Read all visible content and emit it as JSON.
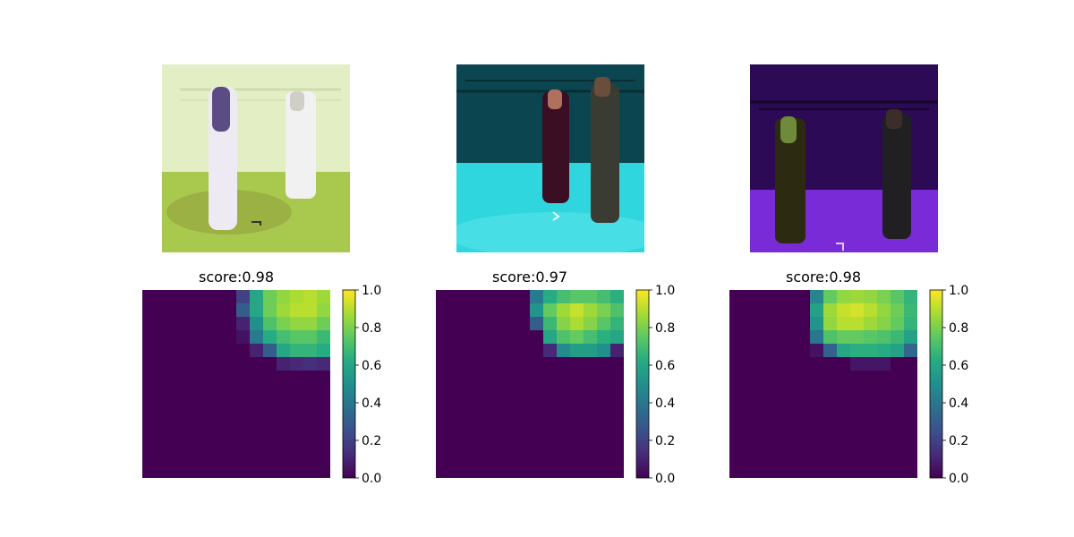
{
  "chart_data": [
    {
      "type": "heatmap",
      "title": "score:0.98",
      "colormap": "viridis",
      "colorbar": {
        "ticks": [
          "0.0",
          "0.2",
          "0.4",
          "0.6",
          "0.8",
          "1.0"
        ],
        "range": [
          0.0,
          1.0
        ]
      },
      "grid_size": [
        14,
        14
      ],
      "values": [
        [
          0,
          0,
          0,
          0,
          0,
          0,
          0,
          0.2,
          0.6,
          0.78,
          0.84,
          0.88,
          0.9,
          0.86
        ],
        [
          0,
          0,
          0,
          0,
          0,
          0,
          0,
          0.3,
          0.6,
          0.78,
          0.86,
          0.9,
          0.9,
          0.84
        ],
        [
          0,
          0,
          0,
          0,
          0,
          0,
          0,
          0.1,
          0.5,
          0.72,
          0.8,
          0.84,
          0.84,
          0.78
        ],
        [
          0,
          0,
          0,
          0,
          0,
          0,
          0,
          0.05,
          0.42,
          0.62,
          0.7,
          0.74,
          0.74,
          0.68
        ],
        [
          0,
          0,
          0,
          0,
          0,
          0,
          0,
          0,
          0.1,
          0.3,
          0.6,
          0.66,
          0.66,
          0.62
        ],
        [
          0,
          0,
          0,
          0,
          0,
          0,
          0,
          0,
          0,
          0,
          0.1,
          0.12,
          0.14,
          0.12
        ],
        [
          0,
          0,
          0,
          0,
          0,
          0,
          0,
          0,
          0,
          0,
          0,
          0,
          0,
          0
        ],
        [
          0,
          0,
          0,
          0,
          0,
          0,
          0,
          0,
          0,
          0,
          0,
          0,
          0,
          0
        ],
        [
          0,
          0,
          0,
          0,
          0,
          0,
          0,
          0,
          0,
          0,
          0,
          0,
          0,
          0
        ],
        [
          0,
          0,
          0,
          0,
          0,
          0,
          0,
          0,
          0,
          0,
          0,
          0,
          0,
          0
        ],
        [
          0,
          0,
          0,
          0,
          0,
          0,
          0,
          0,
          0,
          0,
          0,
          0,
          0,
          0
        ],
        [
          0,
          0,
          0,
          0,
          0,
          0,
          0,
          0,
          0,
          0,
          0,
          0,
          0,
          0
        ],
        [
          0,
          0,
          0,
          0,
          0,
          0,
          0,
          0,
          0,
          0,
          0,
          0,
          0,
          0
        ],
        [
          0,
          0,
          0,
          0,
          0,
          0,
          0,
          0,
          0,
          0,
          0,
          0,
          0,
          0
        ]
      ]
    },
    {
      "type": "heatmap",
      "title": "score:0.97",
      "colormap": "viridis",
      "colorbar": {
        "ticks": [
          "0.0",
          "0.2",
          "0.4",
          "0.6",
          "0.8",
          "1.0"
        ],
        "range": [
          0.0,
          1.0
        ]
      },
      "grid_size": [
        14,
        14
      ],
      "values": [
        [
          0,
          0,
          0,
          0,
          0,
          0,
          0,
          0.42,
          0.62,
          0.7,
          0.74,
          0.74,
          0.7,
          0.64
        ],
        [
          0,
          0,
          0,
          0,
          0,
          0,
          0,
          0.52,
          0.76,
          0.86,
          0.92,
          0.86,
          0.8,
          0.72
        ],
        [
          0,
          0,
          0,
          0,
          0,
          0,
          0,
          0.3,
          0.68,
          0.82,
          0.88,
          0.82,
          0.74,
          0.66
        ],
        [
          0,
          0,
          0,
          0,
          0,
          0,
          0,
          0,
          0.6,
          0.72,
          0.76,
          0.7,
          0.64,
          0.6
        ],
        [
          0,
          0,
          0,
          0,
          0,
          0,
          0,
          0,
          0.12,
          0.48,
          0.56,
          0.56,
          0.5,
          0.1
        ],
        [
          0,
          0,
          0,
          0,
          0,
          0,
          0,
          0,
          0,
          0,
          0,
          0,
          0,
          0
        ],
        [
          0,
          0,
          0,
          0,
          0,
          0,
          0,
          0,
          0,
          0,
          0,
          0,
          0,
          0
        ],
        [
          0,
          0,
          0,
          0,
          0,
          0,
          0,
          0,
          0,
          0,
          0,
          0,
          0,
          0
        ],
        [
          0,
          0,
          0,
          0,
          0,
          0,
          0,
          0,
          0,
          0,
          0,
          0,
          0,
          0
        ],
        [
          0,
          0,
          0,
          0,
          0,
          0,
          0,
          0,
          0,
          0,
          0,
          0,
          0,
          0
        ],
        [
          0,
          0,
          0,
          0,
          0,
          0,
          0,
          0,
          0,
          0,
          0,
          0,
          0,
          0
        ],
        [
          0,
          0,
          0,
          0,
          0,
          0,
          0,
          0,
          0,
          0,
          0,
          0,
          0,
          0
        ],
        [
          0,
          0,
          0,
          0,
          0,
          0,
          0,
          0,
          0,
          0,
          0,
          0,
          0,
          0
        ],
        [
          0,
          0,
          0,
          0,
          0,
          0,
          0,
          0,
          0,
          0,
          0,
          0,
          0,
          0
        ]
      ]
    },
    {
      "type": "heatmap",
      "title": "score:0.98",
      "colormap": "viridis",
      "colorbar": {
        "ticks": [
          "0.0",
          "0.2",
          "0.4",
          "0.6",
          "0.8",
          "1.0"
        ],
        "range": [
          0.0,
          1.0
        ]
      },
      "grid_size": [
        14,
        14
      ],
      "values": [
        [
          0,
          0,
          0,
          0,
          0,
          0,
          0.46,
          0.76,
          0.84,
          0.86,
          0.84,
          0.8,
          0.74,
          0.66
        ],
        [
          0,
          0,
          0,
          0,
          0,
          0,
          0.58,
          0.86,
          0.92,
          0.94,
          0.9,
          0.84,
          0.78,
          0.68
        ],
        [
          0,
          0,
          0,
          0,
          0,
          0,
          0.52,
          0.84,
          0.9,
          0.9,
          0.86,
          0.82,
          0.76,
          0.66
        ],
        [
          0,
          0,
          0,
          0,
          0,
          0,
          0.4,
          0.72,
          0.76,
          0.76,
          0.74,
          0.72,
          0.68,
          0.58
        ],
        [
          0,
          0,
          0,
          0,
          0,
          0,
          0.05,
          0.32,
          0.6,
          0.64,
          0.64,
          0.62,
          0.58,
          0.34
        ],
        [
          0,
          0,
          0,
          0,
          0,
          0,
          0,
          0,
          0,
          0.06,
          0.06,
          0.06,
          0,
          0
        ],
        [
          0,
          0,
          0,
          0,
          0,
          0,
          0,
          0,
          0,
          0,
          0,
          0,
          0,
          0
        ],
        [
          0,
          0,
          0,
          0,
          0,
          0,
          0,
          0,
          0,
          0,
          0,
          0,
          0,
          0
        ],
        [
          0,
          0,
          0,
          0,
          0,
          0,
          0,
          0,
          0,
          0,
          0,
          0,
          0,
          0
        ],
        [
          0,
          0,
          0,
          0,
          0,
          0,
          0,
          0,
          0,
          0,
          0,
          0,
          0,
          0
        ],
        [
          0,
          0,
          0,
          0,
          0,
          0,
          0,
          0,
          0,
          0,
          0,
          0,
          0,
          0
        ],
        [
          0,
          0,
          0,
          0,
          0,
          0,
          0,
          0,
          0,
          0,
          0,
          0,
          0,
          0
        ],
        [
          0,
          0,
          0,
          0,
          0,
          0,
          0,
          0,
          0,
          0,
          0,
          0,
          0,
          0
        ],
        [
          0,
          0,
          0,
          0,
          0,
          0,
          0,
          0,
          0,
          0,
          0,
          0,
          0,
          0
        ]
      ]
    }
  ],
  "photos": [
    {
      "style": "inverted",
      "bg": "#e9f2cf",
      "floor": "#a4c843",
      "curtain": "#dce9b6"
    },
    {
      "style": "teal",
      "bg": "#0f5a63",
      "floor": "#30d8e0",
      "curtain": "#0b4650"
    },
    {
      "style": "purple",
      "bg": "#2a0f4a",
      "floor": "#7a2bd8",
      "curtain": "#2c0a55"
    }
  ]
}
